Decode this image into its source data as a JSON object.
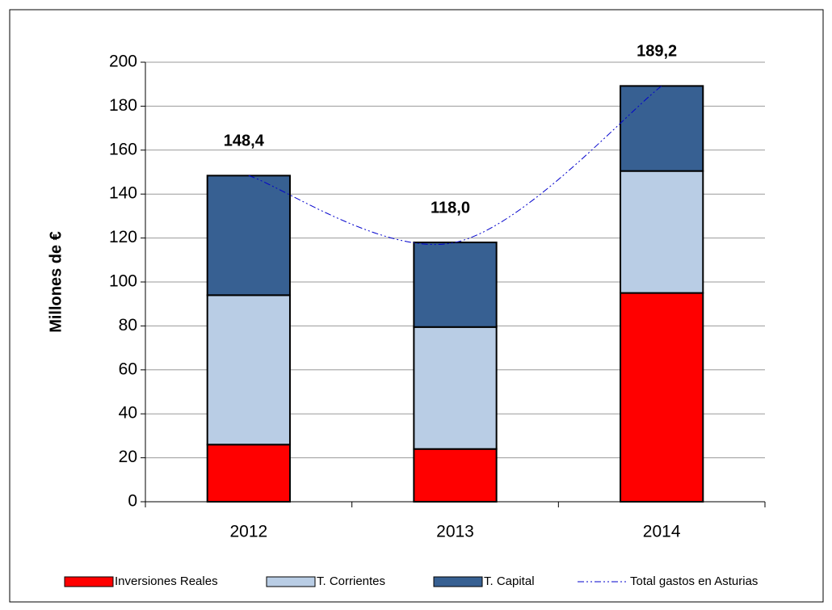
{
  "chart_data": {
    "type": "bar",
    "stacked": true,
    "y_label": "Millones de €",
    "categories": [
      "2012",
      "2013",
      "2014"
    ],
    "series": [
      {
        "name": "Inversiones Reales",
        "type": "bar",
        "color": "#ff0000",
        "values": [
          26,
          24,
          95
        ]
      },
      {
        "name": "T. Corrientes",
        "type": "bar",
        "color": "#b9cde5",
        "values": [
          68,
          55.5,
          55.5
        ]
      },
      {
        "name": "T. Capital",
        "type": "bar",
        "color": "#376092",
        "values": [
          54.4,
          38.5,
          38.7
        ]
      },
      {
        "name": "Total gastos en Asturias",
        "type": "line",
        "color": "#0000cc",
        "values": [
          148.4,
          118.0,
          189.2
        ],
        "value_labels": [
          "148,4",
          "118,0",
          "189,2"
        ]
      }
    ],
    "ylim": [
      0,
      200
    ],
    "yticks": [
      0,
      20,
      40,
      60,
      80,
      100,
      120,
      140,
      160,
      180,
      200
    ],
    "grid": true
  }
}
